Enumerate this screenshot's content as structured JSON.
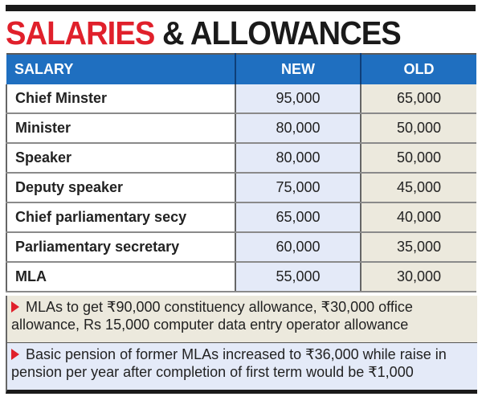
{
  "title": {
    "part1": "SALARIES",
    "part2": "& ALLOWANCES"
  },
  "colors": {
    "accent_red": "#e0202b",
    "header_blue": "#1f6fc0",
    "new_col": "#e4eaf8",
    "old_col": "#ece9dd"
  },
  "table": {
    "headers": [
      "SALARY",
      "NEW",
      "OLD"
    ],
    "rows": [
      {
        "post": "Chief Minster",
        "new": "95,000",
        "old": "65,000"
      },
      {
        "post": "Minister",
        "new": "80,000",
        "old": "50,000"
      },
      {
        "post": "Speaker",
        "new": "80,000",
        "old": "50,000"
      },
      {
        "post": "Deputy speaker",
        "new": "75,000",
        "old": "45,000"
      },
      {
        "post": "Chief parliamentary secy",
        "new": "65,000",
        "old": "40,000"
      },
      {
        "post": "Parliamentary secretary",
        "new": "60,000",
        "old": "35,000"
      },
      {
        "post": "MLA",
        "new": "55,000",
        "old": "30,000"
      }
    ]
  },
  "notes": [
    "MLAs to get ₹90,000 constituency allowance, ₹30,000 office allowance, Rs 15,000 computer data entry operator allowance",
    "Basic pension of former MLAs increased to ₹36,000 while raise in pension per year after completion of first term would be ₹1,000"
  ]
}
